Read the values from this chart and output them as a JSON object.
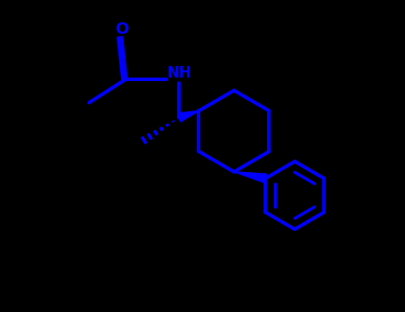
{
  "background_color": "#000000",
  "line_color": "#0000FF",
  "line_width": 2.8,
  "text_color": "#0000FF",
  "font_size": 12,
  "fig_width": 4.55,
  "fig_height": 3.5,
  "dpi": 100
}
